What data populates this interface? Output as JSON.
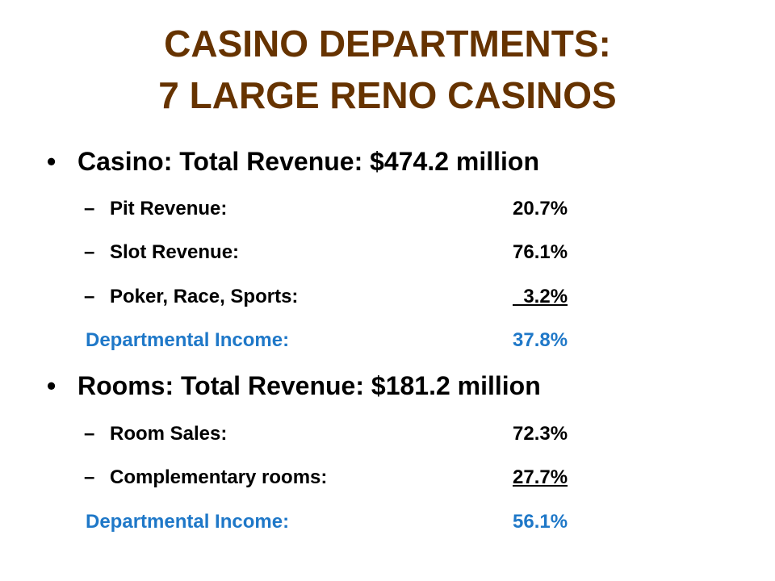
{
  "title": {
    "line1": "CASINO DEPARTMENTS:",
    "line2": "7 LARGE RENO CASINOS"
  },
  "casino": {
    "bullet": "•",
    "heading": "Casino:  Total Revenue:  $474.2 million",
    "items": [
      {
        "dash": "–",
        "label": "Pit Revenue:",
        "value": "20.7%"
      },
      {
        "dash": "–",
        "label": "Slot Revenue:",
        "value": "76.1%"
      },
      {
        "dash": "–",
        "label": "Poker, Race, Sports:",
        "value": "  3.2%"
      }
    ],
    "income": {
      "label": "Departmental Income:",
      "value": "37.8%"
    }
  },
  "rooms": {
    "bullet": "•",
    "heading": "Rooms:  Total Revenue:  $181.2 million",
    "items": [
      {
        "dash": "–",
        "label": "Room Sales:",
        "value": "72.3%"
      },
      {
        "dash": "–",
        "label": "Complementary rooms:",
        "value": "27.7%"
      }
    ],
    "income": {
      "label": "Departmental Income:",
      "value": "56.1%"
    }
  },
  "colors": {
    "title": "#663300",
    "body": "#000000",
    "income": "#1f78c8",
    "background": "#ffffff"
  }
}
